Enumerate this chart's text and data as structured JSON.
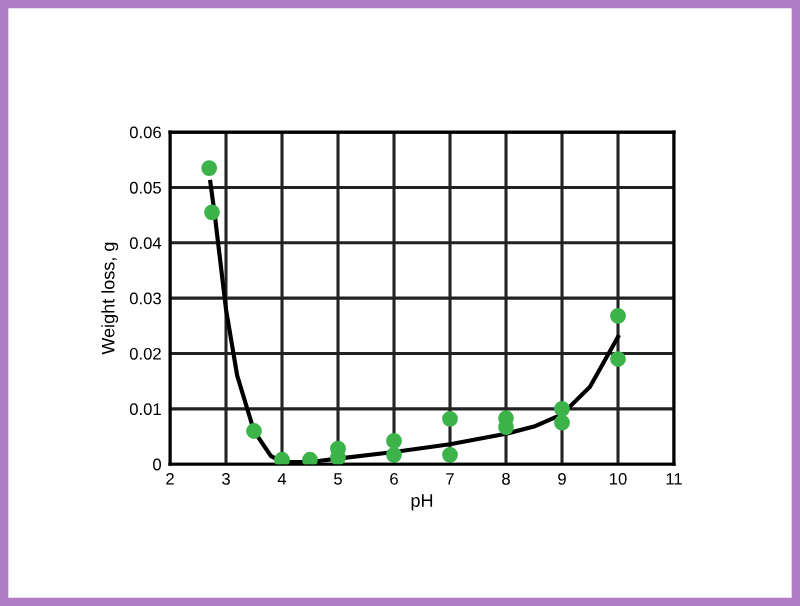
{
  "chart_data": {
    "type": "scatter",
    "xlabel": "pH",
    "ylabel": "Weight loss, g",
    "xlim": [
      2,
      11
    ],
    "xticks": [
      2,
      3,
      4,
      5,
      6,
      7,
      8,
      9,
      10,
      11
    ],
    "ylim": [
      0,
      0.06
    ],
    "yticks": [
      {
        "value": 0,
        "label": "0"
      },
      {
        "value": 0.01,
        "label": "0.01"
      },
      {
        "value": 0.02,
        "label": "0.02"
      },
      {
        "value": 0.03,
        "label": "0.03"
      },
      {
        "value": 0.04,
        "label": "0.04"
      },
      {
        "value": 0.05,
        "label": "0.05"
      },
      {
        "value": 0.06,
        "label": "0.06"
      }
    ],
    "grid": true,
    "marker": "circle",
    "series": [
      {
        "type": "line",
        "color": "#000000",
        "marker": "none",
        "x": [
          2.72,
          2.8,
          3.0,
          3.2,
          3.5,
          3.8,
          4.0,
          4.5,
          5,
          6,
          7,
          8,
          8.5,
          9,
          9.5,
          10
        ],
        "values": [
          0.051,
          0.045,
          0.028,
          0.016,
          0.006,
          0.0015,
          0.0004,
          0.0004,
          0.001,
          0.0022,
          0.0036,
          0.0055,
          0.0068,
          0.009,
          0.014,
          0.023
        ]
      },
      {
        "color": "#3cb44a",
        "x": [
          2.7,
          2.75,
          3.5,
          4,
          4.5,
          5,
          5,
          6,
          6,
          7,
          7,
          8,
          8,
          9,
          9,
          10,
          10
        ],
        "values": [
          0.0535,
          0.0455,
          0.006,
          0.0008,
          0.0008,
          0.0028,
          0.0012,
          0.0042,
          0.0017,
          0.0082,
          0.0017,
          0.0083,
          0.0067,
          0.01,
          0.0075,
          0.0268,
          0.019
        ]
      }
    ]
  }
}
